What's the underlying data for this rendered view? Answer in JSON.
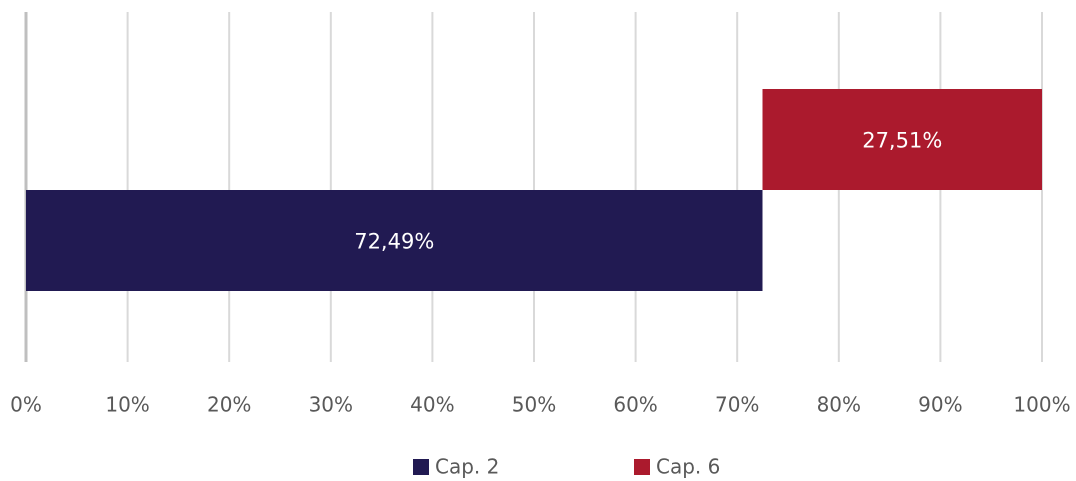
{
  "chart_data": {
    "type": "bar",
    "orientation": "horizontal",
    "stacked": true,
    "series": [
      {
        "name": "Cap. 2",
        "color": "#211a52",
        "values": [
          72.49
        ],
        "value_labels": [
          "72,49%"
        ]
      },
      {
        "name": "Cap. 6",
        "color": "#ab1a2d",
        "values": [
          27.51
        ],
        "value_labels": [
          "27,51%"
        ]
      }
    ],
    "xlim": [
      0,
      100
    ],
    "xticks": [
      {
        "value": 0,
        "label": "0%"
      },
      {
        "value": 10,
        "label": "10%"
      },
      {
        "value": 20,
        "label": "20%"
      },
      {
        "value": 30,
        "label": "30%"
      },
      {
        "value": 40,
        "label": "40%"
      },
      {
        "value": 50,
        "label": "50%"
      },
      {
        "value": 60,
        "label": "60%"
      },
      {
        "value": 70,
        "label": "70%"
      },
      {
        "value": 80,
        "label": "80%"
      },
      {
        "value": 90,
        "label": "90%"
      },
      {
        "value": 100,
        "label": "100%"
      }
    ],
    "grid": true,
    "legend": "bottom"
  }
}
